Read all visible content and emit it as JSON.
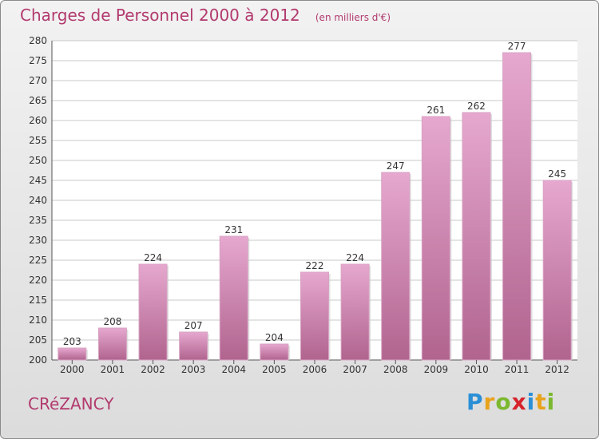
{
  "header": {
    "title": "Charges de Personnel 2000 à 2012",
    "subtitle": "(en milliers d'€)"
  },
  "commune": "CRéZANCY",
  "logo": {
    "text": "Proxiti",
    "letters": [
      "P",
      "r",
      "o",
      "x",
      "i",
      "t",
      "i"
    ],
    "letter_colors": [
      "#2b8fd6",
      "#e8a21c",
      "#7cb82f",
      "#d6232b",
      "#2b8fd6",
      "#e8a21c",
      "#7cb82f"
    ]
  },
  "colors": {
    "bar_top": "#e6a8cf",
    "bar_bottom": "#b0648e",
    "bar_shadow": "#c9c9c9",
    "grid": "#c8c8c8",
    "text": "#333333",
    "title": "#b23a6e"
  },
  "chart_data": {
    "type": "bar",
    "categories": [
      "2000",
      "2001",
      "2002",
      "2003",
      "2004",
      "2005",
      "2006",
      "2007",
      "2008",
      "2009",
      "2010",
      "2011",
      "2012"
    ],
    "values": [
      203,
      208,
      224,
      207,
      231,
      204,
      222,
      224,
      247,
      261,
      262,
      277,
      245
    ],
    "ylim": [
      200,
      280
    ],
    "yticks": [
      200,
      205,
      210,
      215,
      220,
      225,
      230,
      235,
      240,
      245,
      250,
      255,
      260,
      265,
      270,
      275,
      280
    ],
    "grid": true,
    "xlabel": "",
    "ylabel": ""
  }
}
